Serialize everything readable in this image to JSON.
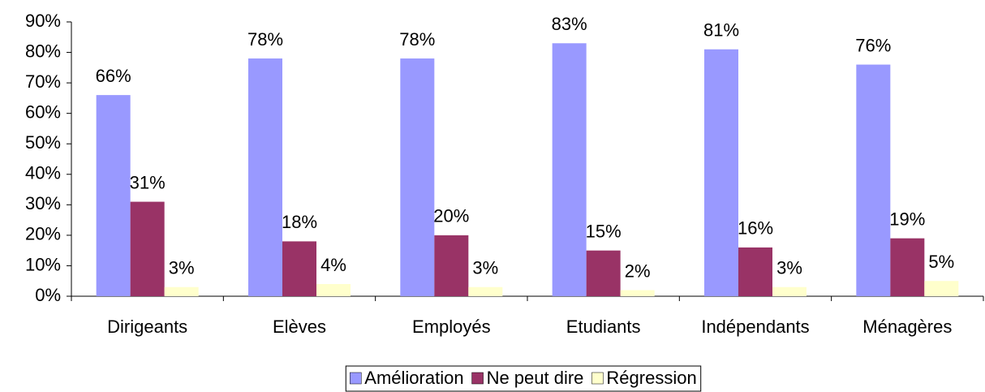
{
  "chart_data": {
    "type": "bar",
    "categories": [
      "Dirigeants",
      "Elèves",
      "Employés",
      "Etudiants",
      "Indépendants",
      "Ménagères"
    ],
    "series": [
      {
        "name": "Amélioration",
        "color": "#9999ff",
        "values": [
          66,
          78,
          78,
          83,
          81,
          76
        ],
        "value_labels": [
          "66%",
          "78%",
          "78%",
          "83%",
          "81%",
          "76%"
        ]
      },
      {
        "name": "Ne peut dire",
        "color": "#993366",
        "values": [
          31,
          18,
          20,
          15,
          16,
          19
        ],
        "value_labels": [
          "31%",
          "18%",
          "20%",
          "15%",
          "16%",
          "19%"
        ]
      },
      {
        "name": "Régression",
        "color": "#ffffcc",
        "values": [
          3,
          4,
          3,
          2,
          3,
          5
        ],
        "value_labels": [
          "3%",
          "4%",
          "3%",
          "2%",
          "3%",
          "5%"
        ]
      }
    ],
    "ylim": [
      0,
      90
    ],
    "yticks": [
      {
        "value": 0,
        "label": "0%"
      },
      {
        "value": 10,
        "label": "10%"
      },
      {
        "value": 20,
        "label": "20%"
      },
      {
        "value": 30,
        "label": "30%"
      },
      {
        "value": 40,
        "label": "40%"
      },
      {
        "value": 50,
        "label": "50%"
      },
      {
        "value": 60,
        "label": "60%"
      },
      {
        "value": 70,
        "label": "70%"
      },
      {
        "value": 80,
        "label": "80%"
      },
      {
        "value": 90,
        "label": "90%"
      }
    ],
    "legend": "bottom"
  }
}
